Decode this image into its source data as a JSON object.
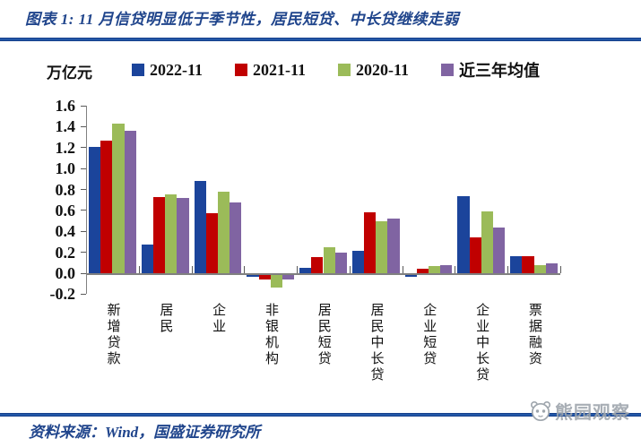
{
  "header": {
    "title": "图表 1: 11 月信贷明显低于季节性，居民短贷、中长贷继续走弱"
  },
  "footer": {
    "source": "资料来源：Wind，国盛证券研究所",
    "watermark": "熊园观察"
  },
  "colors": {
    "title_blue": "#20458C",
    "rule_blue": "#2357A7",
    "axis_gray": "#808080",
    "watermark_gray": "#9FA6AD",
    "series": [
      "#1B449B",
      "#C00000",
      "#9BBB59",
      "#8064A2"
    ]
  },
  "chart_data": {
    "type": "bar",
    "title": "图表 1: 11 月信贷明显低于季节性，居民短贷、中长贷继续走弱",
    "ylabel": "万亿元",
    "xlabel": "",
    "ylim": [
      -0.2,
      1.6
    ],
    "ytick_step": 0.2,
    "grid": false,
    "legend_position": "top",
    "categories": [
      "新增贷款",
      "居民",
      "企业",
      "非银机构",
      "居民短贷",
      "居民中长贷",
      "企业短贷",
      "企业中长贷",
      "票据融资"
    ],
    "series": [
      {
        "name": "2022-11",
        "color": "#1B449B",
        "values": [
          1.21,
          0.27,
          0.88,
          -0.02,
          0.05,
          0.21,
          -0.02,
          0.74,
          0.16
        ]
      },
      {
        "name": "2021-11",
        "color": "#C00000",
        "values": [
          1.27,
          0.73,
          0.57,
          -0.05,
          0.15,
          0.58,
          0.04,
          0.34,
          0.16
        ]
      },
      {
        "name": "2020-11",
        "color": "#9BBB59",
        "values": [
          1.43,
          0.75,
          0.78,
          -0.12,
          0.25,
          0.5,
          0.07,
          0.59,
          0.08
        ]
      },
      {
        "name": "近三年均值",
        "color": "#8064A2",
        "values": [
          1.36,
          0.72,
          0.68,
          -0.05,
          0.2,
          0.52,
          0.08,
          0.44,
          0.09
        ]
      }
    ]
  }
}
